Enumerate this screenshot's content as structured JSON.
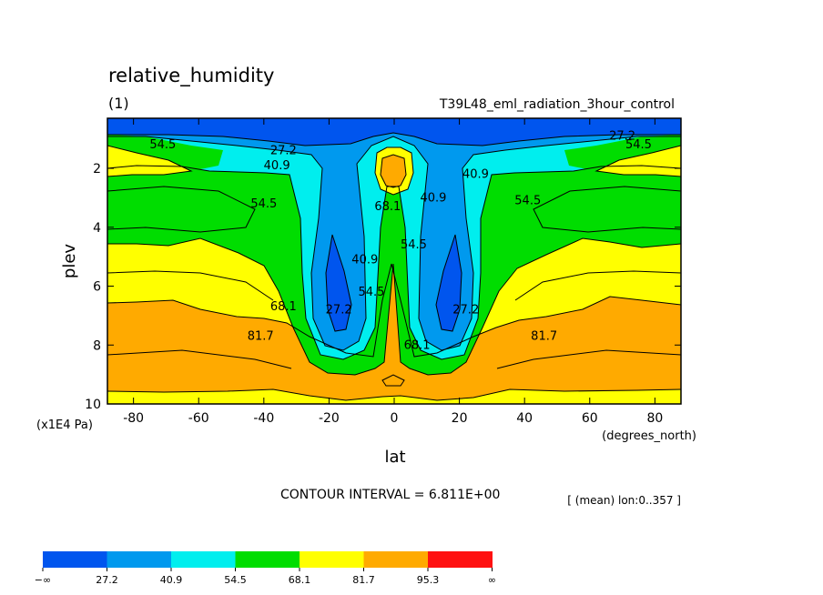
{
  "chart_data": {
    "type": "contour",
    "title": "relative_humidity",
    "subtitle_left": "(1)",
    "subtitle_right": "T39L48_eml_radiation_3hour_control",
    "xlabel": "lat",
    "x_units": "(degrees_north)",
    "ylabel": "plev",
    "y_units": "(x1E4 Pa)",
    "xlim": [
      -88,
      88
    ],
    "ylim": [
      0.3,
      10
    ],
    "y_inverted": true,
    "x_ticks": [
      -80,
      -60,
      -40,
      -20,
      0,
      20,
      40,
      60,
      80
    ],
    "y_ticks": [
      2,
      4,
      6,
      8,
      10
    ],
    "contour_interval_text": "CONTOUR INTERVAL = 6.811E+00",
    "mean_text": "[ (mean) lon:0..357 ]",
    "contour_labels": [
      {
        "text": "54.5",
        "lat": -71,
        "plev": 1.2
      },
      {
        "text": "27.2",
        "lat": -34,
        "plev": 1.4
      },
      {
        "text": "40.9",
        "lat": -36,
        "plev": 1.9
      },
      {
        "text": "54.5",
        "lat": -40,
        "plev": 3.2
      },
      {
        "text": "68.1",
        "lat": -2,
        "plev": 3.3
      },
      {
        "text": "40.9",
        "lat": 12,
        "plev": 3.0
      },
      {
        "text": "54.5",
        "lat": 6,
        "plev": 4.6
      },
      {
        "text": "40.9",
        "lat": 25,
        "plev": 2.2
      },
      {
        "text": "54.5",
        "lat": 41,
        "plev": 3.1
      },
      {
        "text": "27.2",
        "lat": 70,
        "plev": 0.9
      },
      {
        "text": "54.5",
        "lat": 75,
        "plev": 1.2
      },
      {
        "text": "40.9",
        "lat": -9,
        "plev": 5.1
      },
      {
        "text": "54.5",
        "lat": -7,
        "plev": 6.2
      },
      {
        "text": "27.2",
        "lat": -17,
        "plev": 6.8
      },
      {
        "text": "68.1",
        "lat": -34,
        "plev": 6.7
      },
      {
        "text": "27.2",
        "lat": 22,
        "plev": 6.8
      },
      {
        "text": "81.7",
        "lat": -41,
        "plev": 7.7
      },
      {
        "text": "68.1",
        "lat": 7,
        "plev": 8.0
      },
      {
        "text": "81.7",
        "lat": 46,
        "plev": 7.7
      }
    ],
    "levels": [
      "−∞",
      "27.2",
      "40.9",
      "54.5",
      "68.1",
      "81.7",
      "95.3",
      "∞"
    ],
    "level_colors": [
      "#0055ee",
      "#0099ee",
      "#00eeee",
      "#00dd00",
      "#ffff00",
      "#ffaa00",
      "#ff1111"
    ]
  }
}
